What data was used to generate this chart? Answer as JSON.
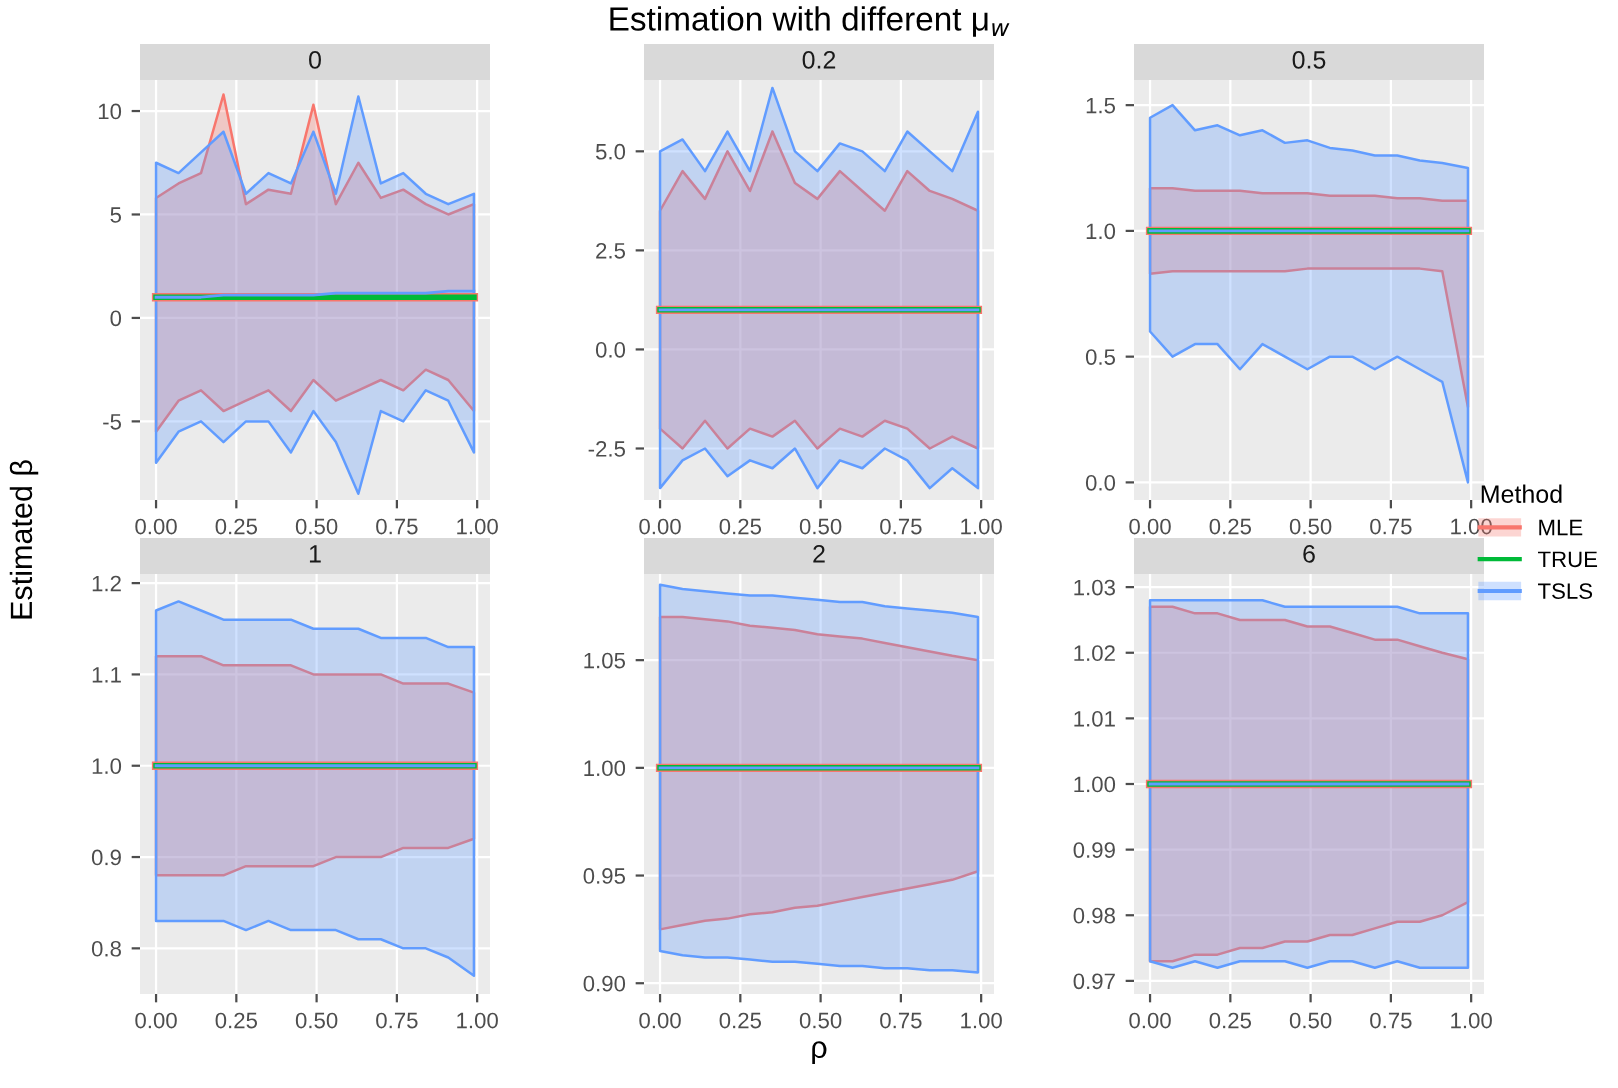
{
  "chart_data": [
    {
      "type": "line",
      "title": "0",
      "annotations": [
        "Estimation with different μ$_{w}$"
      ],
      "x": [
        0,
        0.07,
        0.14,
        0.21,
        0.28,
        0.35,
        0.42,
        0.49,
        0.56,
        0.63,
        0.7,
        0.77,
        0.84,
        0.91,
        0.99
      ],
      "xlim": [
        -0.05,
        1.04
      ],
      "xticks": [
        {
          "value": 0,
          "label": "0.00"
        },
        {
          "value": 0.25,
          "label": "0.25"
        },
        {
          "value": 0.5,
          "label": "0.50"
        },
        {
          "value": 0.75,
          "label": "0.75"
        },
        {
          "value": 1,
          "label": "1.00"
        }
      ],
      "ylim": [
        -8.8,
        11.5
      ],
      "yticks": [
        -5,
        0,
        5,
        10
      ],
      "grid": true,
      "legend": false,
      "series": [
        {
          "color": "#f8766d",
          "values": [
            1,
            1,
            1,
            1,
            1,
            1,
            1,
            1,
            1,
            1,
            1,
            1,
            1,
            1,
            1
          ],
          "lower": [
            -5.5,
            -4.0,
            -3.5,
            -4.5,
            -4.0,
            -3.5,
            -4.5,
            -3.0,
            -4.0,
            -3.5,
            -3.0,
            -3.5,
            -2.5,
            -3.0,
            -4.5
          ],
          "upper": [
            5.8,
            6.5,
            7.0,
            10.8,
            5.5,
            6.2,
            6.0,
            10.3,
            5.5,
            7.5,
            5.8,
            6.2,
            5.5,
            5.0,
            5.5
          ]
        },
        {
          "color": "#00ba38",
          "values": [
            1,
            1,
            1,
            1,
            1,
            1,
            1,
            1,
            1,
            1,
            1,
            1,
            1,
            1,
            1
          ]
        },
        {
          "color": "#619cff",
          "values": [
            1.0,
            1.0,
            1.0,
            1.1,
            1.1,
            1.1,
            1.1,
            1.1,
            1.2,
            1.2,
            1.2,
            1.2,
            1.2,
            1.3,
            1.3
          ],
          "lower": [
            -7.0,
            -5.5,
            -5.0,
            -6.0,
            -5.0,
            -5.0,
            -6.5,
            -4.5,
            -6.0,
            -8.5,
            -4.5,
            -5.0,
            -3.5,
            -4.0,
            -6.5
          ],
          "upper": [
            7.5,
            7.0,
            8.0,
            9.0,
            6.0,
            7.0,
            6.5,
            9.0,
            6.0,
            10.7,
            6.5,
            7.0,
            6.0,
            5.5,
            6.0
          ]
        }
      ]
    },
    {
      "type": "line",
      "title": "0.2",
      "x": [
        0,
        0.07,
        0.14,
        0.21,
        0.28,
        0.35,
        0.42,
        0.49,
        0.56,
        0.63,
        0.7,
        0.77,
        0.84,
        0.91,
        0.99
      ],
      "xlim": [
        -0.05,
        1.04
      ],
      "xticks": [
        {
          "value": 0,
          "label": "0.00"
        },
        {
          "value": 0.25,
          "label": "0.25"
        },
        {
          "value": 0.5,
          "label": "0.50"
        },
        {
          "value": 0.75,
          "label": "0.75"
        },
        {
          "value": 1,
          "label": "1.00"
        }
      ],
      "ylim": [
        -3.8,
        6.8
      ],
      "yticks": [
        -2.5,
        {
          "value": 0,
          "label": "0.0"
        },
        2.5,
        {
          "value": 5,
          "label": "5.0"
        }
      ],
      "grid": true,
      "legend": false,
      "series": [
        {
          "color": "#f8766d",
          "values": [
            1,
            1,
            1,
            1,
            1,
            1,
            1,
            1,
            1,
            1,
            1,
            1,
            1,
            1,
            1
          ],
          "lower": [
            -2.0,
            -2.5,
            -1.8,
            -2.5,
            -2.0,
            -2.2,
            -1.8,
            -2.5,
            -2.0,
            -2.2,
            -1.8,
            -2.0,
            -2.5,
            -2.2,
            -2.5
          ],
          "upper": [
            3.5,
            4.5,
            3.8,
            5.0,
            4.0,
            5.5,
            4.2,
            3.8,
            4.5,
            4.0,
            3.5,
            4.5,
            4.0,
            3.8,
            3.5
          ]
        },
        {
          "color": "#00ba38",
          "values": [
            1,
            1,
            1,
            1,
            1,
            1,
            1,
            1,
            1,
            1,
            1,
            1,
            1,
            1,
            1
          ]
        },
        {
          "color": "#619cff",
          "values": [
            1,
            1,
            1,
            1,
            1,
            1,
            1,
            1,
            1,
            1,
            1,
            1,
            1,
            1,
            1
          ],
          "lower": [
            -3.5,
            -2.8,
            -2.5,
            -3.2,
            -2.8,
            -3.0,
            -2.5,
            -3.5,
            -2.8,
            -3.0,
            -2.5,
            -2.8,
            -3.5,
            -3.0,
            -3.5
          ],
          "upper": [
            5.0,
            5.3,
            4.5,
            5.5,
            4.5,
            6.6,
            5.0,
            4.5,
            5.2,
            5.0,
            4.5,
            5.5,
            5.0,
            4.5,
            6.0
          ]
        }
      ]
    },
    {
      "type": "line",
      "title": "0.5",
      "legend_title": "Method",
      "x": [
        0,
        0.07,
        0.14,
        0.21,
        0.28,
        0.35,
        0.42,
        0.49,
        0.56,
        0.63,
        0.7,
        0.77,
        0.84,
        0.91,
        0.99
      ],
      "xlim": [
        -0.05,
        1.04
      ],
      "xticks": [
        {
          "value": 0,
          "label": "0.00"
        },
        {
          "value": 0.25,
          "label": "0.25"
        },
        {
          "value": 0.5,
          "label": "0.50"
        },
        {
          "value": 0.75,
          "label": "0.75"
        },
        {
          "value": 1,
          "label": "1.00"
        }
      ],
      "ylim": [
        -0.07,
        1.6
      ],
      "yticks": [
        {
          "value": 0,
          "label": "0.0"
        },
        0.5,
        {
          "value": 1,
          "label": "1.0"
        },
        1.5
      ],
      "grid": true,
      "legend": "right",
      "series": [
        {
          "name": "MLE",
          "color": "#f8766d",
          "values": [
            1,
            1,
            1,
            1,
            1,
            1,
            1,
            1,
            1,
            1,
            1,
            1,
            1,
            1,
            1
          ],
          "lower": [
            0.83,
            0.84,
            0.84,
            0.84,
            0.84,
            0.84,
            0.84,
            0.85,
            0.85,
            0.85,
            0.85,
            0.85,
            0.85,
            0.84,
            0.3
          ],
          "upper": [
            1.17,
            1.17,
            1.16,
            1.16,
            1.16,
            1.15,
            1.15,
            1.15,
            1.14,
            1.14,
            1.14,
            1.13,
            1.13,
            1.12,
            1.12
          ]
        },
        {
          "name": "TRUE",
          "color": "#00ba38",
          "values": [
            1,
            1,
            1,
            1,
            1,
            1,
            1,
            1,
            1,
            1,
            1,
            1,
            1,
            1,
            1
          ]
        },
        {
          "name": "TSLS",
          "color": "#619cff",
          "values": [
            1,
            1,
            1,
            1,
            1,
            1,
            1,
            1,
            1,
            1,
            1,
            1,
            1,
            1,
            1
          ],
          "lower": [
            0.6,
            0.5,
            0.55,
            0.55,
            0.45,
            0.55,
            0.5,
            0.45,
            0.5,
            0.5,
            0.45,
            0.5,
            0.45,
            0.4,
            0.0
          ],
          "upper": [
            1.45,
            1.5,
            1.4,
            1.42,
            1.38,
            1.4,
            1.35,
            1.36,
            1.33,
            1.32,
            1.3,
            1.3,
            1.28,
            1.27,
            1.25
          ]
        }
      ]
    },
    {
      "type": "line",
      "title": "1",
      "ylabel": "Estimated β",
      "x": [
        0,
        0.07,
        0.14,
        0.21,
        0.28,
        0.35,
        0.42,
        0.49,
        0.56,
        0.63,
        0.7,
        0.77,
        0.84,
        0.91,
        0.99
      ],
      "xlim": [
        -0.05,
        1.04
      ],
      "xticks": [
        {
          "value": 0,
          "label": "0.00"
        },
        {
          "value": 0.25,
          "label": "0.25"
        },
        {
          "value": 0.5,
          "label": "0.50"
        },
        {
          "value": 0.75,
          "label": "0.75"
        },
        {
          "value": 1,
          "label": "1.00"
        }
      ],
      "ylim": [
        0.75,
        1.21
      ],
      "yticks": [
        0.8,
        0.9,
        {
          "value": 1,
          "label": "1.0"
        },
        1.1,
        1.2
      ],
      "grid": true,
      "legend": false,
      "series": [
        {
          "color": "#f8766d",
          "values": [
            1,
            1,
            1,
            1,
            1,
            1,
            1,
            1,
            1,
            1,
            1,
            1,
            1,
            1,
            1
          ],
          "lower": [
            0.88,
            0.88,
            0.88,
            0.88,
            0.89,
            0.89,
            0.89,
            0.89,
            0.9,
            0.9,
            0.9,
            0.91,
            0.91,
            0.91,
            0.92
          ],
          "upper": [
            1.12,
            1.12,
            1.12,
            1.11,
            1.11,
            1.11,
            1.11,
            1.1,
            1.1,
            1.1,
            1.1,
            1.09,
            1.09,
            1.09,
            1.08
          ]
        },
        {
          "color": "#00ba38",
          "values": [
            1,
            1,
            1,
            1,
            1,
            1,
            1,
            1,
            1,
            1,
            1,
            1,
            1,
            1,
            1
          ]
        },
        {
          "color": "#619cff",
          "values": [
            1,
            1,
            1,
            1,
            1,
            1,
            1,
            1,
            1,
            1,
            1,
            1,
            1,
            1,
            1
          ],
          "lower": [
            0.83,
            0.83,
            0.83,
            0.83,
            0.82,
            0.83,
            0.82,
            0.82,
            0.82,
            0.81,
            0.81,
            0.8,
            0.8,
            0.79,
            0.77
          ],
          "upper": [
            1.17,
            1.18,
            1.17,
            1.16,
            1.16,
            1.16,
            1.16,
            1.15,
            1.15,
            1.15,
            1.14,
            1.14,
            1.14,
            1.13,
            1.13
          ]
        }
      ]
    },
    {
      "type": "line",
      "title": "2",
      "xlabel": "ρ",
      "x": [
        0,
        0.07,
        0.14,
        0.21,
        0.28,
        0.35,
        0.42,
        0.49,
        0.56,
        0.63,
        0.7,
        0.77,
        0.84,
        0.91,
        0.99
      ],
      "xlim": [
        -0.05,
        1.04
      ],
      "xticks": [
        {
          "value": 0,
          "label": "0.00"
        },
        {
          "value": 0.25,
          "label": "0.25"
        },
        {
          "value": 0.5,
          "label": "0.50"
        },
        {
          "value": 0.75,
          "label": "0.75"
        },
        {
          "value": 1,
          "label": "1.00"
        }
      ],
      "ylim": [
        0.895,
        1.09
      ],
      "yticks": [
        {
          "value": 0.9,
          "label": "0.90"
        },
        0.95,
        {
          "value": 1,
          "label": "1.00"
        },
        1.05
      ],
      "grid": true,
      "legend": false,
      "series": [
        {
          "color": "#f8766d",
          "values": [
            1,
            1,
            1,
            1,
            1,
            1,
            1,
            1,
            1,
            1,
            1,
            1,
            1,
            1,
            1
          ],
          "lower": [
            0.925,
            0.927,
            0.929,
            0.93,
            0.932,
            0.933,
            0.935,
            0.936,
            0.938,
            0.94,
            0.942,
            0.944,
            0.946,
            0.948,
            0.952
          ],
          "upper": [
            1.07,
            1.07,
            1.069,
            1.068,
            1.066,
            1.065,
            1.064,
            1.062,
            1.061,
            1.06,
            1.058,
            1.056,
            1.054,
            1.052,
            1.05
          ]
        },
        {
          "color": "#00ba38",
          "values": [
            1,
            1,
            1,
            1,
            1,
            1,
            1,
            1,
            1,
            1,
            1,
            1,
            1,
            1,
            1
          ]
        },
        {
          "color": "#619cff",
          "values": [
            1,
            1,
            1,
            1,
            1,
            1,
            1,
            1,
            1,
            1,
            1,
            1,
            1,
            1,
            1
          ],
          "lower": [
            0.915,
            0.913,
            0.912,
            0.912,
            0.911,
            0.91,
            0.91,
            0.909,
            0.908,
            0.908,
            0.907,
            0.907,
            0.906,
            0.906,
            0.905
          ],
          "upper": [
            1.085,
            1.083,
            1.082,
            1.081,
            1.08,
            1.08,
            1.079,
            1.078,
            1.077,
            1.077,
            1.075,
            1.074,
            1.073,
            1.072,
            1.07
          ]
        }
      ]
    },
    {
      "type": "line",
      "title": "6",
      "x": [
        0,
        0.07,
        0.14,
        0.21,
        0.28,
        0.35,
        0.42,
        0.49,
        0.56,
        0.63,
        0.7,
        0.77,
        0.84,
        0.91,
        0.99
      ],
      "xlim": [
        -0.05,
        1.04
      ],
      "xticks": [
        {
          "value": 0,
          "label": "0.00"
        },
        {
          "value": 0.25,
          "label": "0.25"
        },
        {
          "value": 0.5,
          "label": "0.50"
        },
        {
          "value": 0.75,
          "label": "0.75"
        },
        {
          "value": 1,
          "label": "1.00"
        }
      ],
      "ylim": [
        0.968,
        1.032
      ],
      "yticks": [
        0.97,
        0.98,
        0.99,
        {
          "value": 1,
          "label": "1.00"
        },
        1.01,
        1.02,
        1.03
      ],
      "grid": true,
      "legend": false,
      "series": [
        {
          "color": "#f8766d",
          "values": [
            1,
            1,
            1,
            1,
            1,
            1,
            1,
            1,
            1,
            1,
            1,
            1,
            1,
            1,
            1
          ],
          "lower": [
            0.973,
            0.973,
            0.974,
            0.974,
            0.975,
            0.975,
            0.976,
            0.976,
            0.977,
            0.977,
            0.978,
            0.979,
            0.979,
            0.98,
            0.982
          ],
          "upper": [
            1.027,
            1.027,
            1.026,
            1.026,
            1.025,
            1.025,
            1.025,
            1.024,
            1.024,
            1.023,
            1.022,
            1.022,
            1.021,
            1.02,
            1.019
          ]
        },
        {
          "color": "#00ba38",
          "values": [
            1,
            1,
            1,
            1,
            1,
            1,
            1,
            1,
            1,
            1,
            1,
            1,
            1,
            1,
            1
          ]
        },
        {
          "color": "#619cff",
          "values": [
            1,
            1,
            1,
            1,
            1,
            1,
            1,
            1,
            1,
            1,
            1,
            1,
            1,
            1,
            1
          ],
          "lower": [
            0.973,
            0.972,
            0.973,
            0.972,
            0.973,
            0.973,
            0.973,
            0.972,
            0.973,
            0.973,
            0.972,
            0.973,
            0.972,
            0.972,
            0.972
          ],
          "upper": [
            1.028,
            1.028,
            1.028,
            1.028,
            1.028,
            1.028,
            1.027,
            1.027,
            1.027,
            1.027,
            1.027,
            1.027,
            1.026,
            1.026,
            1.026
          ]
        }
      ]
    }
  ]
}
